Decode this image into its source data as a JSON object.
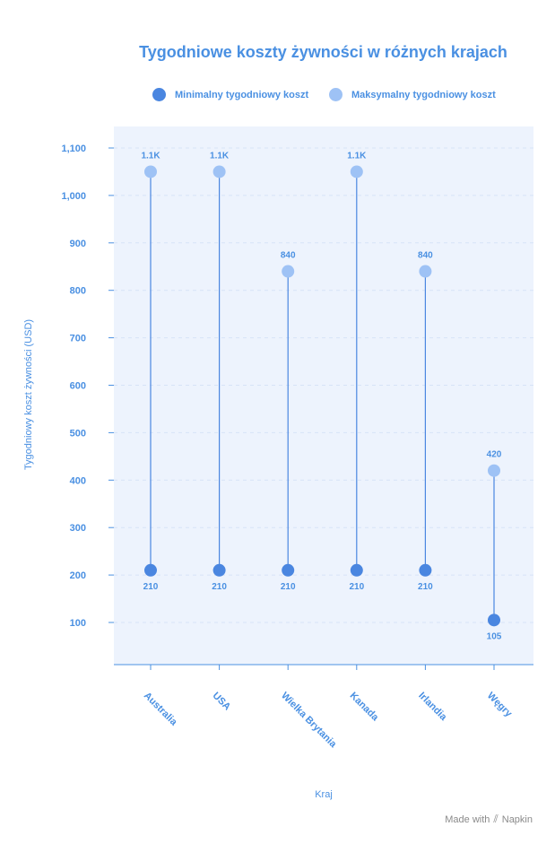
{
  "chart_data": {
    "type": "dumbbell",
    "title": "Tygodniowe koszty żywności w różnych krajach",
    "xlabel": "Kraj",
    "ylabel": "Tygodniowy koszt żywności (USD)",
    "categories": [
      "Australia",
      "USA",
      "Wielka Brytania",
      "Kanada",
      "Irlandia",
      "Węgry"
    ],
    "series": [
      {
        "name": "Minimalny tygodniowy koszt",
        "values": [
          210,
          210,
          210,
          210,
          210,
          105
        ],
        "color": "#4a86e0",
        "labels": [
          "210",
          "210",
          "210",
          "210",
          "210",
          "105"
        ]
      },
      {
        "name": "Maksymalny tygodniowy koszt",
        "values": [
          1050,
          1050,
          840,
          1050,
          840,
          420
        ],
        "color": "#9ec2f5",
        "labels": [
          "1.1K",
          "1.1K",
          "840",
          "1.1K",
          "840",
          "420"
        ]
      }
    ],
    "yticks": [
      "100",
      "200",
      "300",
      "400",
      "500",
      "600",
      "700",
      "800",
      "900",
      "1,000",
      "1,100"
    ],
    "ylim": [
      20,
      1170
    ],
    "grid": true,
    "legend": "top"
  },
  "colors": {
    "accent": "#4a90e2",
    "plot_bg": "#edf3fd",
    "min_dot": "#4a86e0",
    "max_dot": "#9ec2f5"
  },
  "footer": {
    "made_with": "Made with",
    "brand": "Napkin",
    "icon": "napkin-logo-icon"
  }
}
